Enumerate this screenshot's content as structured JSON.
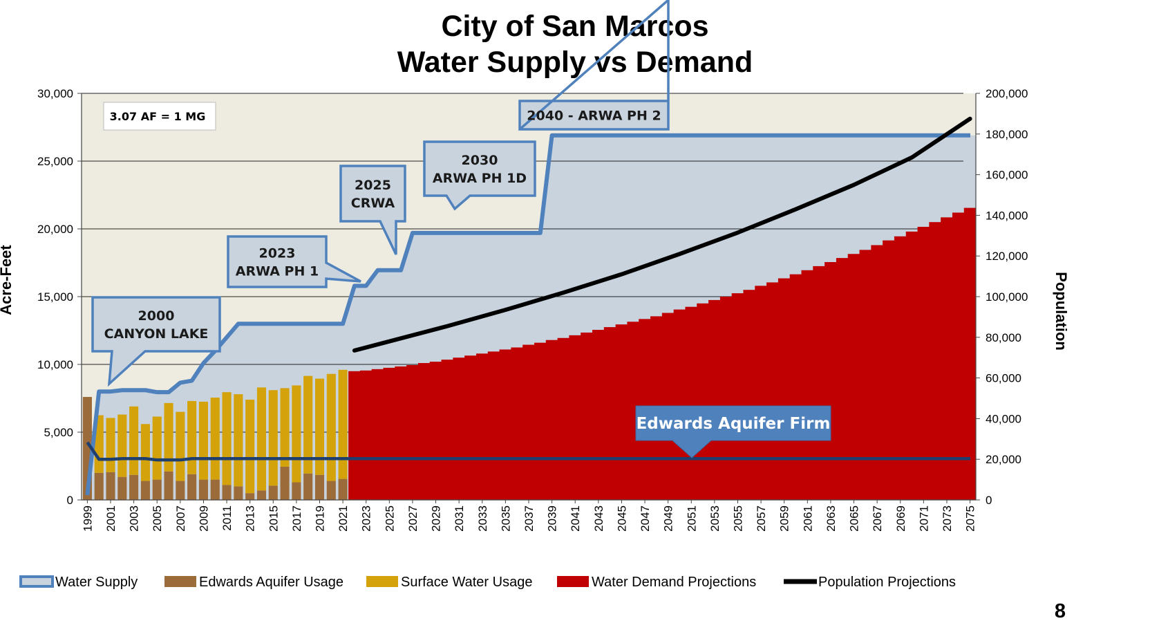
{
  "title_line1": "City of San Marcos",
  "title_line2": "Water Supply vs Demand",
  "page_number": "8",
  "conversion_note": "3.07 AF = 1 MG",
  "callouts": [
    {
      "lines": [
        "2000",
        "CANYON LAKE"
      ],
      "points_to_year": 2001
    },
    {
      "lines": [
        "2023",
        "ARWA PH 1"
      ],
      "points_to_year": 2023
    },
    {
      "lines": [
        "2025",
        "CRWA"
      ],
      "points_to_year": 2025
    },
    {
      "lines": [
        "2030",
        "ARWA PH 1D"
      ],
      "points_to_year": 2031
    },
    {
      "lines": [
        "2040 - ARWA PH 2"
      ],
      "points_to_year": 2040
    }
  ],
  "edwards_firm_label": "Edwards Aquifer Firm",
  "colors": {
    "water_supply_line": "#4f81bd",
    "supply_fill": "#c8d3dd",
    "plot_bg": "#eeece1",
    "edwards_usage": "#9c6b3a",
    "surface_usage": "#d4a20b",
    "demand": "#c00000",
    "population": "#000000",
    "edwards_firm_line": "#1f3f6f",
    "callout_fill": "#c8d3dd",
    "edwards_label_box": "#4f81bd"
  },
  "legend": [
    {
      "label": "Water Supply",
      "key": "water_supply"
    },
    {
      "label": "Edwards Aquifer Usage",
      "key": "edwards_usage"
    },
    {
      "label": "Surface Water Usage",
      "key": "surface_usage"
    },
    {
      "label": "Water Demand Projections",
      "key": "demand"
    },
    {
      "label": "Population Projections",
      "key": "population"
    }
  ],
  "chart_data": {
    "type": "bar",
    "title": "City of San Marcos Water Supply vs Demand",
    "ylabel": "Acre-Feet",
    "y2label": "Population",
    "ylim": [
      0,
      30000
    ],
    "y2lim": [
      0,
      200000
    ],
    "xlim": [
      1999,
      2075
    ],
    "grid": "horizontal at left-axis ticks",
    "legend_position": "bottom",
    "x_tick_labels": [
      "1999",
      "2001",
      "2003",
      "2005",
      "2007",
      "2009",
      "2011",
      "2013",
      "2015",
      "2017",
      "2019",
      "2021",
      "2023",
      "2025",
      "2027",
      "2029",
      "2031",
      "2033",
      "2035",
      "2037",
      "2039",
      "2041",
      "2043",
      "2045",
      "2047",
      "2049",
      "2051",
      "2053",
      "2055",
      "2057",
      "2059",
      "2061",
      "2063",
      "2065",
      "2067",
      "2069",
      "2071",
      "2073",
      "2075"
    ],
    "y_tick_labels": [
      "0",
      "5,000",
      "10,000",
      "15,000",
      "20,000",
      "25,000",
      "30,000"
    ],
    "y_ticks": [
      0,
      5000,
      10000,
      15000,
      20000,
      25000,
      30000
    ],
    "y2_tick_labels": [
      "0",
      "20,000",
      "40,000",
      "60,000",
      "80,000",
      "100,000",
      "120,000",
      "140,000",
      "160,000",
      "180,000",
      "200,000"
    ],
    "y2_ticks": [
      0,
      20000,
      40000,
      60000,
      80000,
      100000,
      120000,
      140000,
      160000,
      180000,
      200000
    ],
    "series": [
      {
        "name": "Edwards Aquifer Usage",
        "type": "stacked_bar",
        "x": [
          1999,
          2000,
          2001,
          2002,
          2003,
          2004,
          2005,
          2006,
          2007,
          2008,
          2009,
          2010,
          2011,
          2012,
          2013,
          2014,
          2015,
          2016,
          2017,
          2018,
          2019,
          2020,
          2021
        ],
        "values": [
          7600,
          2000,
          2050,
          1700,
          1850,
          1400,
          1500,
          2100,
          1400,
          1900,
          1500,
          1500,
          1100,
          1000,
          500,
          700,
          1050,
          2450,
          1300,
          1950,
          1850,
          1400,
          1550
        ]
      },
      {
        "name": "Surface Water Usage",
        "type": "stacked_bar",
        "x": [
          1999,
          2000,
          2001,
          2002,
          2003,
          2004,
          2005,
          2006,
          2007,
          2008,
          2009,
          2010,
          2011,
          2012,
          2013,
          2014,
          2015,
          2016,
          2017,
          2018,
          2019,
          2020,
          2021
        ],
        "values": [
          0,
          4250,
          4000,
          4600,
          5050,
          4200,
          4650,
          5050,
          5100,
          5400,
          5750,
          6050,
          6850,
          6800,
          6900,
          7600,
          7050,
          5800,
          7150,
          7200,
          7100,
          7900,
          8050
        ]
      },
      {
        "name": "Water Demand Projections",
        "type": "bar",
        "x_start": 2022,
        "x_end": 2075,
        "values": [
          9500,
          9550,
          9650,
          9750,
          9850,
          9950,
          10100,
          10200,
          10350,
          10500,
          10650,
          10800,
          10950,
          11100,
          11250,
          11450,
          11600,
          11800,
          11950,
          12150,
          12350,
          12550,
          12750,
          12950,
          13150,
          13350,
          13550,
          13800,
          14050,
          14250,
          14500,
          14750,
          15000,
          15250,
          15500,
          15800,
          16050,
          16350,
          16650,
          16950,
          17250,
          17550,
          17850,
          18150,
          18450,
          18800,
          19150,
          19450,
          19800,
          20150,
          20500,
          20850,
          21200,
          21550
        ]
      },
      {
        "name": "Water Supply",
        "type": "line",
        "points": [
          [
            1999,
            350
          ],
          [
            2000,
            8000
          ],
          [
            2001,
            8000
          ],
          [
            2002,
            8100
          ],
          [
            2003,
            8100
          ],
          [
            2004,
            8100
          ],
          [
            2005,
            7950
          ],
          [
            2006,
            7950
          ],
          [
            2007,
            8650
          ],
          [
            2008,
            8800
          ],
          [
            2009,
            10100
          ],
          [
            2010,
            11000
          ],
          [
            2011,
            12000
          ],
          [
            2012,
            13000
          ],
          [
            2013,
            13000
          ],
          [
            2021,
            13000
          ],
          [
            2022,
            15800
          ],
          [
            2023,
            15800
          ],
          [
            2024,
            16950
          ],
          [
            2025,
            16950
          ],
          [
            2026,
            16950
          ],
          [
            2027,
            19700
          ],
          [
            2038,
            19700
          ],
          [
            2039,
            26900
          ],
          [
            2075,
            26900
          ]
        ]
      },
      {
        "name": "Edwards Aquifer Firm",
        "type": "line",
        "points": [
          [
            1999,
            4250
          ],
          [
            2000,
            3000
          ],
          [
            2001,
            3000
          ],
          [
            2002,
            3050
          ],
          [
            2003,
            3050
          ],
          [
            2004,
            3050
          ],
          [
            2005,
            2950
          ],
          [
            2006,
            2950
          ],
          [
            2007,
            2950
          ],
          [
            2008,
            3050
          ],
          [
            2075,
            3050
          ]
        ]
      },
      {
        "name": "Population Projections",
        "type": "line",
        "axis": "secondary",
        "points": [
          [
            2022,
            73500
          ],
          [
            2025,
            78000
          ],
          [
            2030,
            85500
          ],
          [
            2035,
            93500
          ],
          [
            2040,
            102000
          ],
          [
            2045,
            111000
          ],
          [
            2050,
            121000
          ],
          [
            2055,
            131500
          ],
          [
            2060,
            143000
          ],
          [
            2065,
            155000
          ],
          [
            2070,
            168500
          ],
          [
            2075,
            187500
          ]
        ]
      }
    ]
  }
}
